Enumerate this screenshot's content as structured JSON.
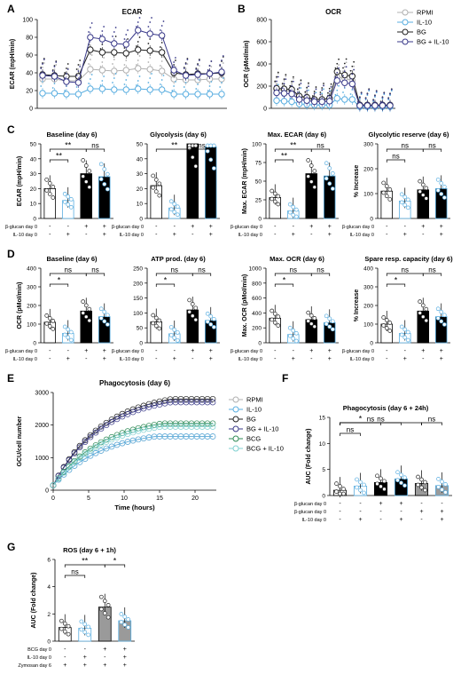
{
  "panel_letters": [
    "A",
    "B",
    "C",
    "D",
    "E",
    "F",
    "G"
  ],
  "colors": {
    "rpmi": "#b0b0b0",
    "il10": "#5aaee0",
    "bg": "#222222",
    "bgil10": "#3a3a8a",
    "bcg": "#2e8b57",
    "bcgil10": "#7fd0d0",
    "bar_black": "#000000",
    "bar_white": "#ffffff",
    "bar_gray": "#9a9a9a",
    "bar_light": "#d8d8d8"
  },
  "chart_data": [
    {
      "id": "A",
      "type": "line",
      "title": "ECAR",
      "ylabel": "ECAR (mpH/min)",
      "ylim": [
        0,
        100
      ],
      "yticks": [
        0,
        20,
        40,
        60,
        80,
        100
      ],
      "x": [
        1,
        2,
        3,
        4,
        5,
        6,
        7,
        8,
        9,
        10,
        11,
        12,
        13,
        14,
        15,
        16
      ],
      "series": [
        {
          "name": "RPMI",
          "values": [
            33,
            33,
            31,
            31,
            44,
            43,
            42,
            43,
            45,
            44,
            42,
            33,
            32,
            32,
            33,
            33
          ]
        },
        {
          "name": "IL-10",
          "values": [
            17,
            17,
            16,
            16,
            22,
            22,
            21,
            21,
            22,
            21,
            21,
            16,
            16,
            16,
            16,
            16
          ]
        },
        {
          "name": "BG",
          "values": [
            38,
            37,
            36,
            36,
            66,
            63,
            63,
            62,
            66,
            65,
            63,
            40,
            38,
            39,
            39,
            40
          ]
        },
        {
          "name": "BG + IL-10",
          "values": [
            37,
            36,
            30,
            29,
            80,
            78,
            73,
            72,
            88,
            84,
            82,
            43,
            37,
            38,
            39,
            41
          ]
        }
      ]
    },
    {
      "id": "B",
      "type": "line",
      "title": "OCR",
      "ylabel": "OCR (pMoI/min)",
      "ylim": [
        0,
        800
      ],
      "yticks": [
        0,
        200,
        400,
        600,
        800
      ],
      "x": [
        1,
        2,
        3,
        4,
        5,
        6,
        7,
        8,
        9,
        10,
        11,
        12,
        13,
        14,
        15,
        16
      ],
      "series": [
        {
          "name": "RPMI",
          "values": [
            170,
            160,
            155,
            100,
            90,
            70,
            65,
            70,
            280,
            270,
            250,
            30,
            30,
            25,
            25,
            25
          ]
        },
        {
          "name": "IL-10",
          "values": [
            70,
            65,
            60,
            40,
            35,
            30,
            30,
            30,
            90,
            80,
            80,
            15,
            15,
            15,
            15,
            15
          ]
        },
        {
          "name": "BG",
          "values": [
            180,
            175,
            170,
            110,
            100,
            80,
            80,
            90,
            330,
            300,
            290,
            30,
            30,
            30,
            30,
            30
          ]
        },
        {
          "name": "BG + IL-10",
          "values": [
            140,
            135,
            130,
            80,
            70,
            60,
            60,
            65,
            250,
            230,
            220,
            25,
            25,
            25,
            25,
            25
          ]
        }
      ]
    },
    {
      "id": "C1",
      "type": "bar",
      "title": "Baseline (day 6)",
      "ylabel": "ECAR (mpH/min)",
      "ylim": [
        0,
        50
      ],
      "yticks": [
        0,
        10,
        20,
        30,
        40,
        50
      ],
      "values": [
        20,
        12,
        30,
        28
      ],
      "sig": [
        {
          "from": 0,
          "to": 2,
          "label": "**"
        },
        {
          "from": 0,
          "to": 1,
          "label": "**"
        },
        {
          "from": 2,
          "to": 3,
          "label": "ns"
        }
      ]
    },
    {
      "id": "C2",
      "type": "bar",
      "title": "Glycolysis (day 6)",
      "ylabel": "",
      "ylim": [
        0,
        50
      ],
      "yticks": [
        0,
        10,
        20,
        30,
        40,
        50
      ],
      "values": [
        22,
        7,
        50,
        48
      ],
      "sig": [
        {
          "from": 0,
          "to": 2,
          "label": "**"
        },
        {
          "from": 2,
          "to": 3,
          "label": "ns"
        }
      ]
    },
    {
      "id": "C3",
      "type": "bar",
      "title": "Max. ECAR (day 6)",
      "ylabel": "Max. ECAR (mpH/min)",
      "ylim": [
        0,
        100
      ],
      "yticks": [
        0,
        25,
        50,
        75,
        100
      ],
      "values": [
        28,
        10,
        60,
        57
      ],
      "sig": [
        {
          "from": 0,
          "to": 2,
          "label": "**"
        },
        {
          "from": 0,
          "to": 1,
          "label": "**"
        },
        {
          "from": 2,
          "to": 3,
          "label": "ns"
        }
      ]
    },
    {
      "id": "C4",
      "type": "bar",
      "title": "Glycolytic reserve (day 6)",
      "ylabel": "% Increase",
      "ylim": [
        0,
        300
      ],
      "yticks": [
        0,
        100,
        200,
        300
      ],
      "values": [
        110,
        70,
        115,
        120
      ],
      "sig": [
        {
          "from": 0,
          "to": 2,
          "label": "ns"
        },
        {
          "from": 0,
          "to": 1,
          "label": "ns"
        },
        {
          "from": 2,
          "to": 3,
          "label": "ns"
        }
      ]
    },
    {
      "id": "D1",
      "type": "bar",
      "title": "Baseline (day 6)",
      "ylabel": "OCR (pMoI/min)",
      "ylim": [
        0,
        400
      ],
      "yticks": [
        0,
        100,
        200,
        300,
        400
      ],
      "values": [
        110,
        50,
        170,
        140
      ],
      "sig": [
        {
          "from": 0,
          "to": 2,
          "label": "ns"
        },
        {
          "from": 0,
          "to": 1,
          "label": "*"
        },
        {
          "from": 2,
          "to": 3,
          "label": "ns"
        }
      ]
    },
    {
      "id": "D2",
      "type": "bar",
      "title": "ATP prod. (day 6)",
      "ylabel": "",
      "ylim": [
        0,
        250
      ],
      "yticks": [
        0,
        50,
        100,
        150,
        200,
        250
      ],
      "values": [
        70,
        30,
        110,
        75
      ],
      "sig": [
        {
          "from": 0,
          "to": 2,
          "label": "ns"
        },
        {
          "from": 0,
          "to": 1,
          "label": "*"
        },
        {
          "from": 2,
          "to": 3,
          "label": "ns"
        }
      ]
    },
    {
      "id": "D3",
      "type": "bar",
      "title": "Max. OCR (day 6)",
      "ylabel": "Max. OCR (pMoI/min)",
      "ylim": [
        0,
        1000
      ],
      "yticks": [
        0,
        200,
        400,
        600,
        800,
        1000
      ],
      "values": [
        330,
        110,
        310,
        270
      ],
      "sig": [
        {
          "from": 0,
          "to": 2,
          "label": "ns"
        },
        {
          "from": 0,
          "to": 1,
          "label": "*"
        },
        {
          "from": 2,
          "to": 3,
          "label": "ns"
        }
      ]
    },
    {
      "id": "D4",
      "type": "bar",
      "title": "Spare resp. capacity (day 6)",
      "ylabel": "% Increase",
      "ylim": [
        0,
        400
      ],
      "yticks": [
        0,
        100,
        200,
        300,
        400
      ],
      "values": [
        100,
        50,
        170,
        140
      ],
      "sig": [
        {
          "from": 0,
          "to": 2,
          "label": "ns"
        },
        {
          "from": 0,
          "to": 1,
          "label": "*"
        },
        {
          "from": 2,
          "to": 3,
          "label": "ns"
        }
      ]
    },
    {
      "id": "E",
      "type": "line",
      "title": "Phagocytosis (day 6)",
      "xlabel": "Time (hours)",
      "ylabel": "GCU/cell number",
      "xlim": [
        0,
        23
      ],
      "xticks": [
        0,
        5,
        10,
        15,
        20
      ],
      "ylim": [
        0,
        3000
      ],
      "yticks": [
        0,
        1000,
        2000,
        3000
      ],
      "series": [
        {
          "name": "RPMI",
          "final": 1650
        },
        {
          "name": "IL-10",
          "final": 1650
        },
        {
          "name": "BG",
          "final": 2800
        },
        {
          "name": "BG + IL-10",
          "final": 2700
        },
        {
          "name": "BCG",
          "final": 2050
        },
        {
          "name": "BCG + IL-10",
          "final": 1950
        }
      ]
    },
    {
      "id": "F",
      "type": "bar",
      "title": "Phagocytosis (day 6 + 24h)",
      "ylabel": "AUC (Fold change)",
      "ylim": [
        0,
        15
      ],
      "yticks": [
        0,
        5,
        10,
        15
      ],
      "values": [
        1,
        1.8,
        2.5,
        3.2,
        2.3,
        1.9
      ],
      "sig": [
        {
          "from": 0,
          "to": 1,
          "label": "ns"
        },
        {
          "from": 0,
          "to": 2,
          "label": "*"
        },
        {
          "from": 0,
          "to": 3,
          "label": "ns"
        },
        {
          "from": 0,
          "to": 4,
          "label": "ns"
        },
        {
          "from": 4,
          "to": 5,
          "label": "ns"
        }
      ]
    },
    {
      "id": "G",
      "type": "bar",
      "title": "ROS (day 6 + 1h)",
      "ylabel": "AUC (Fold change)",
      "ylim": [
        0,
        6
      ],
      "yticks": [
        0,
        2,
        4,
        6
      ],
      "values": [
        1,
        0.95,
        2.5,
        1.5
      ],
      "sig": [
        {
          "from": 0,
          "to": 1,
          "label": "ns"
        },
        {
          "from": 0,
          "to": 2,
          "label": "**"
        },
        {
          "from": 2,
          "to": 3,
          "label": "*"
        }
      ]
    }
  ],
  "legend_AB": [
    "RPMI",
    "IL-10",
    "BG",
    "BG + IL-10"
  ],
  "legend_E": [
    "RPMI",
    "IL-10",
    "BG",
    "BG + IL-10",
    "BCG",
    "BCG + IL-10"
  ],
  "rows_CD": {
    "labels": [
      "β-glucan day 0",
      "IL-10 day 0"
    ],
    "signs": [
      [
        "-",
        "-",
        "+",
        "+"
      ],
      [
        "-",
        "+",
        "-",
        "+"
      ]
    ]
  },
  "rows_F": {
    "labels": [
      "β-glucan day 0",
      "β-glucan day 0",
      "IL-10 day 0"
    ],
    "signs": [
      [
        "-",
        "-",
        "+",
        "+",
        "-",
        "-"
      ],
      [
        "-",
        "-",
        "-",
        "-",
        "+",
        "+"
      ],
      [
        "-",
        "+",
        "-",
        "+",
        "-",
        "+"
      ]
    ]
  },
  "rows_G": {
    "labels": [
      "BCG day 0",
      "IL-10 day 0",
      "Zymosan day 6"
    ],
    "signs": [
      [
        "-",
        "-",
        "+",
        "+"
      ],
      [
        "-",
        "+",
        "-",
        "+"
      ],
      [
        "+",
        "+",
        "+",
        "+"
      ]
    ]
  }
}
